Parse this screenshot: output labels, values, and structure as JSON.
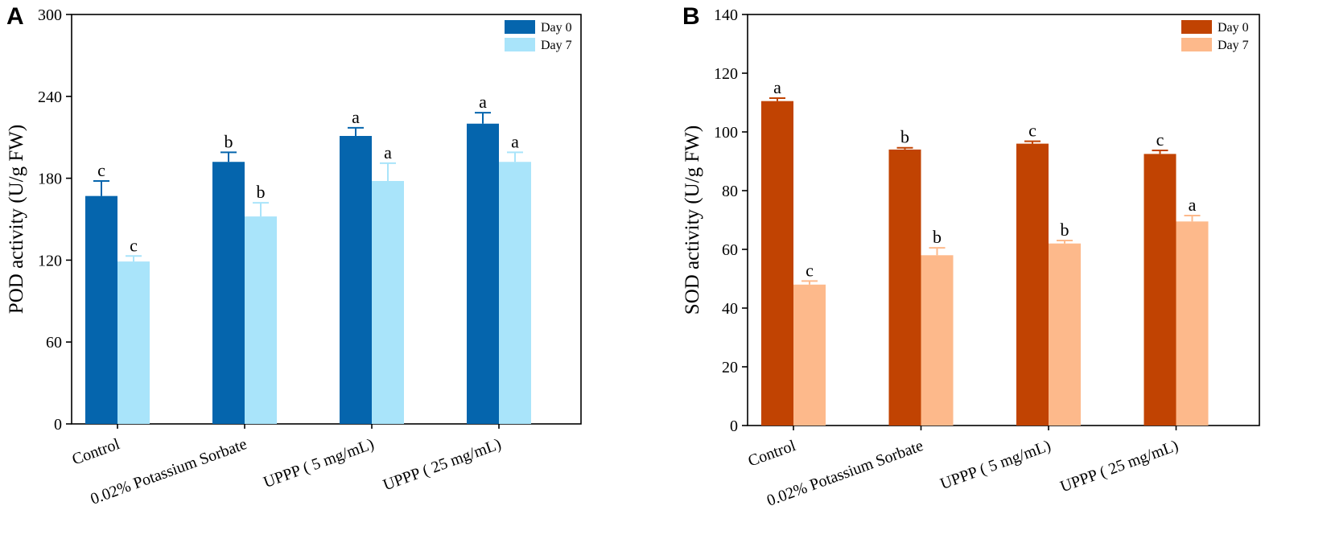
{
  "chart_data": [
    {
      "panel": "A",
      "type": "bar",
      "ylabel": "POD activity (U/g FW)",
      "xlabel": "",
      "ylim": [
        0,
        300
      ],
      "yticks": [
        0,
        60,
        120,
        180,
        240,
        300
      ],
      "categories": [
        "Control",
        "0.02% Potassium Sorbate",
        "UPPP ( 5 mg/mL)",
        "UPPP ( 25 mg/mL)"
      ],
      "legend_position": "top-right",
      "series": [
        {
          "name": "Day 0",
          "color": "#0565ad",
          "values": [
            167,
            192,
            211,
            220
          ],
          "errors": [
            11,
            7,
            6,
            8
          ],
          "labels": [
            "c",
            "b",
            "a",
            "a"
          ]
        },
        {
          "name": "Day 7",
          "color": "#a9e4fa",
          "values": [
            119,
            152,
            178,
            192
          ],
          "errors": [
            4,
            10,
            13,
            7
          ],
          "labels": [
            "c",
            "b",
            "a",
            "a"
          ]
        }
      ]
    },
    {
      "panel": "B",
      "type": "bar",
      "ylabel": "SOD activity (U/g FW)",
      "xlabel": "",
      "ylim": [
        0,
        140
      ],
      "yticks": [
        0,
        20,
        40,
        60,
        80,
        100,
        120,
        140
      ],
      "categories": [
        "Control",
        "0.02% Potassium Sorbate",
        "UPPP ( 5 mg/mL)",
        "UPPP ( 25 mg/mL)"
      ],
      "legend_position": "top-right",
      "series": [
        {
          "name": "Day 0",
          "color": "#c14302",
          "values": [
            110.5,
            94,
            96,
            92.5
          ],
          "errors": [
            1,
            0.6,
            0.8,
            1.2
          ],
          "labels": [
            "a",
            "b",
            "c",
            "c"
          ]
        },
        {
          "name": "Day 7",
          "color": "#fdb98b",
          "values": [
            48,
            58,
            62,
            69.5
          ],
          "errors": [
            1.2,
            2.5,
            1,
            2
          ],
          "labels": [
            "c",
            "b",
            "b",
            "a"
          ]
        }
      ]
    }
  ]
}
